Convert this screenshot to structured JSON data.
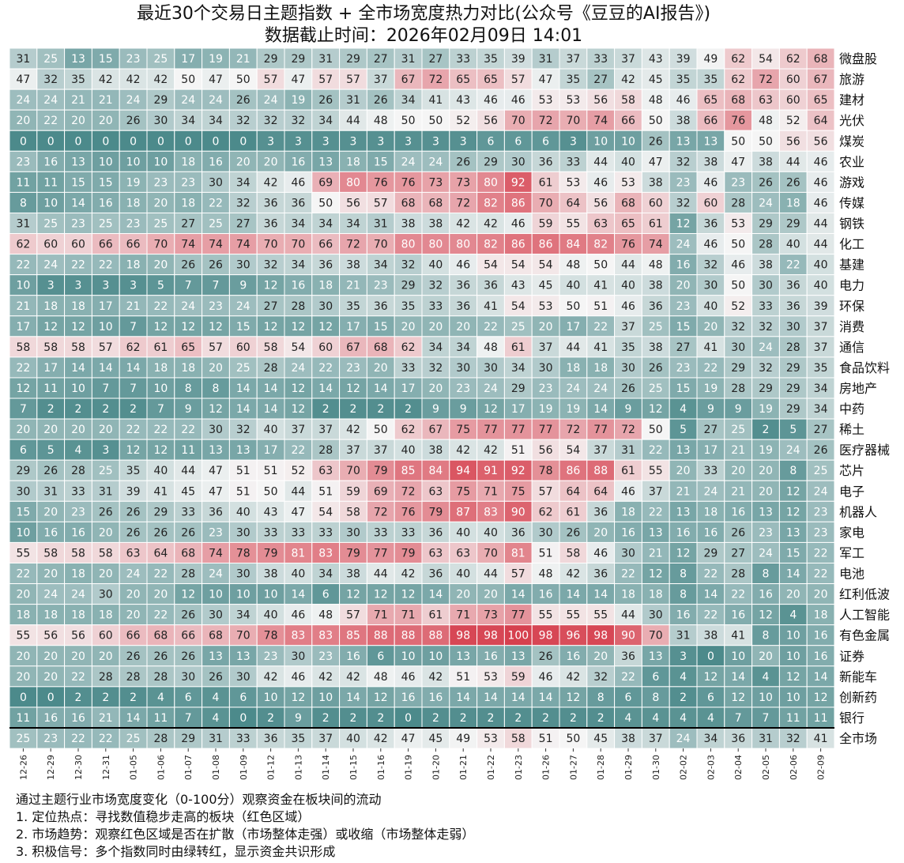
{
  "header": {
    "title_line1": "最近30个交易日主题指数 + 全市场宽度热力对比(公众号《豆豆的AI报告》)",
    "title_line2": "数据截止时间：2026年02月09日 14:01"
  },
  "notes": [
    "通过主题行业市场宽度变化（0-100分）观察资金在板块间的流动",
    "1. 定位热点：寻找数值稳步走高的板块（红色区域）",
    "2. 市场趋势：观察红色区域是否在扩散（市场整体走强）或收缩（市场整体走弱）",
    "3. 积极信号：多个指数同时由绿转红，显示资金共识形成"
  ],
  "chart_data": {
    "type": "heatmap",
    "title": "最近30个交易日主题指数 + 全市场宽度热力对比(公众号《豆豆的AI报告》)",
    "subtitle": "数据截止时间：2026年02月09日 14:01",
    "value_range": [
      0,
      100
    ],
    "colors": {
      "low": "#4c8a8b",
      "mid": "#f5f5f5",
      "high": "#d6404e"
    },
    "x": [
      "12-26",
      "12-29",
      "12-30",
      "12-31",
      "01-05",
      "01-06",
      "01-07",
      "01-08",
      "01-09",
      "01-12",
      "01-13",
      "01-14",
      "01-15",
      "01-16",
      "01-19",
      "01-20",
      "01-21",
      "01-22",
      "01-23",
      "01-26",
      "01-27",
      "01-28",
      "01-29",
      "01-30",
      "02-02",
      "02-03",
      "02-04",
      "02-05",
      "02-06",
      "02-09"
    ],
    "rows": [
      {
        "name": "微盘股",
        "values": [
          31,
          25,
          13,
          15,
          23,
          25,
          17,
          19,
          21,
          29,
          29,
          31,
          29,
          27,
          31,
          27,
          33,
          35,
          39,
          31,
          37,
          33,
          37,
          43,
          39,
          49,
          62,
          54,
          62,
          68
        ]
      },
      {
        "name": "旅游",
        "values": [
          47,
          32,
          35,
          42,
          42,
          42,
          50,
          47,
          50,
          57,
          47,
          57,
          57,
          37,
          67,
          72,
          65,
          65,
          57,
          47,
          35,
          27,
          42,
          45,
          35,
          35,
          62,
          72,
          60,
          67
        ]
      },
      {
        "name": "建材",
        "values": [
          24,
          24,
          21,
          21,
          24,
          29,
          24,
          24,
          26,
          24,
          19,
          26,
          31,
          26,
          34,
          41,
          43,
          46,
          46,
          53,
          53,
          56,
          58,
          48,
          46,
          65,
          68,
          63,
          60,
          65
        ]
      },
      {
        "name": "光伏",
        "values": [
          20,
          22,
          20,
          20,
          26,
          30,
          34,
          34,
          32,
          32,
          32,
          34,
          44,
          48,
          50,
          50,
          52,
          56,
          70,
          72,
          70,
          74,
          66,
          50,
          38,
          66,
          76,
          48,
          52,
          64
        ]
      },
      {
        "name": "煤炭",
        "values": [
          0,
          0,
          0,
          0,
          0,
          0,
          0,
          0,
          0,
          3,
          3,
          3,
          3,
          3,
          3,
          3,
          3,
          6,
          6,
          6,
          3,
          10,
          10,
          26,
          13,
          13,
          50,
          50,
          56,
          56
        ]
      },
      {
        "name": "农业",
        "values": [
          23,
          16,
          13,
          10,
          10,
          10,
          18,
          16,
          20,
          20,
          16,
          13,
          18,
          15,
          24,
          24,
          26,
          29,
          30,
          36,
          33,
          44,
          40,
          47,
          32,
          38,
          47,
          38,
          44,
          46
        ]
      },
      {
        "name": "游戏",
        "values": [
          11,
          11,
          15,
          15,
          19,
          23,
          23,
          30,
          34,
          42,
          46,
          69,
          80,
          76,
          76,
          73,
          73,
          80,
          92,
          61,
          53,
          46,
          53,
          38,
          23,
          46,
          23,
          26,
          26,
          46
        ]
      },
      {
        "name": "传媒",
        "values": [
          8,
          10,
          14,
          16,
          18,
          20,
          18,
          22,
          32,
          36,
          36,
          50,
          56,
          57,
          68,
          68,
          72,
          82,
          86,
          70,
          64,
          56,
          68,
          60,
          32,
          60,
          28,
          24,
          18,
          46
        ]
      },
      {
        "name": "钢铁",
        "values": [
          31,
          25,
          23,
          25,
          23,
          25,
          27,
          25,
          27,
          36,
          34,
          34,
          34,
          31,
          38,
          38,
          42,
          42,
          46,
          59,
          55,
          63,
          65,
          61,
          12,
          36,
          53,
          29,
          29,
          44
        ]
      },
      {
        "name": "化工",
        "values": [
          62,
          60,
          60,
          66,
          66,
          70,
          74,
          74,
          74,
          70,
          70,
          66,
          72,
          70,
          80,
          80,
          80,
          82,
          86,
          86,
          84,
          82,
          76,
          74,
          24,
          46,
          50,
          28,
          40,
          44
        ]
      },
      {
        "name": "基建",
        "values": [
          22,
          24,
          22,
          22,
          18,
          20,
          26,
          26,
          30,
          32,
          34,
          36,
          38,
          34,
          32,
          40,
          46,
          54,
          54,
          54,
          48,
          50,
          44,
          48,
          16,
          32,
          46,
          38,
          22,
          40
        ]
      },
      {
        "name": "电力",
        "values": [
          10,
          3,
          3,
          3,
          3,
          5,
          7,
          7,
          9,
          12,
          16,
          18,
          21,
          23,
          29,
          32,
          36,
          36,
          43,
          45,
          40,
          41,
          40,
          38,
          20,
          30,
          50,
          30,
          36,
          40
        ]
      },
      {
        "name": "环保",
        "values": [
          21,
          18,
          18,
          17,
          21,
          22,
          24,
          23,
          24,
          27,
          28,
          30,
          35,
          36,
          35,
          33,
          36,
          41,
          54,
          53,
          50,
          51,
          46,
          36,
          23,
          40,
          52,
          33,
          36,
          39
        ]
      },
      {
        "name": "消费",
        "values": [
          17,
          12,
          12,
          10,
          7,
          12,
          12,
          12,
          15,
          12,
          12,
          12,
          17,
          15,
          20,
          20,
          20,
          22,
          25,
          20,
          17,
          22,
          37,
          25,
          15,
          20,
          32,
          32,
          30,
          37
        ]
      },
      {
        "name": "通信",
        "values": [
          58,
          58,
          58,
          57,
          62,
          61,
          65,
          57,
          60,
          58,
          54,
          60,
          67,
          68,
          62,
          34,
          34,
          48,
          61,
          37,
          44,
          41,
          35,
          38,
          27,
          41,
          30,
          24,
          28,
          37
        ]
      },
      {
        "name": "食品饮料",
        "values": [
          22,
          17,
          14,
          14,
          14,
          18,
          18,
          20,
          25,
          28,
          24,
          22,
          23,
          20,
          33,
          32,
          30,
          30,
          34,
          30,
          18,
          18,
          30,
          26,
          23,
          22,
          29,
          32,
          29,
          35
        ]
      },
      {
        "name": "房地产",
        "values": [
          12,
          11,
          10,
          7,
          7,
          10,
          8,
          8,
          14,
          14,
          12,
          14,
          12,
          14,
          17,
          20,
          23,
          24,
          29,
          23,
          24,
          24,
          26,
          25,
          15,
          19,
          28,
          29,
          29,
          34
        ]
      },
      {
        "name": "中药",
        "values": [
          7,
          2,
          2,
          2,
          2,
          7,
          9,
          12,
          14,
          14,
          12,
          2,
          2,
          2,
          2,
          9,
          9,
          12,
          17,
          19,
          19,
          14,
          9,
          12,
          4,
          9,
          9,
          19,
          29,
          34
        ]
      },
      {
        "name": "稀土",
        "values": [
          20,
          20,
          20,
          20,
          22,
          22,
          22,
          30,
          32,
          40,
          37,
          37,
          42,
          50,
          62,
          67,
          75,
          77,
          77,
          77,
          72,
          77,
          72,
          50,
          5,
          27,
          25,
          2,
          5,
          27
        ]
      },
      {
        "name": "医疗器械",
        "values": [
          6,
          5,
          4,
          3,
          12,
          12,
          11,
          13,
          13,
          17,
          22,
          28,
          37,
          37,
          40,
          38,
          42,
          42,
          51,
          56,
          54,
          37,
          31,
          22,
          13,
          17,
          21,
          19,
          24,
          26
        ]
      },
      {
        "name": "芯片",
        "values": [
          29,
          26,
          28,
          25,
          35,
          40,
          44,
          47,
          51,
          51,
          52,
          63,
          70,
          79,
          85,
          84,
          94,
          91,
          92,
          78,
          86,
          88,
          61,
          55,
          20,
          33,
          20,
          20,
          8,
          25
        ]
      },
      {
        "name": "电子",
        "values": [
          30,
          31,
          33,
          31,
          39,
          41,
          45,
          47,
          51,
          50,
          44,
          51,
          59,
          69,
          72,
          63,
          75,
          71,
          75,
          57,
          64,
          64,
          46,
          37,
          21,
          24,
          21,
          20,
          12,
          24
        ]
      },
      {
        "name": "机器人",
        "values": [
          15,
          20,
          23,
          26,
          26,
          29,
          33,
          36,
          40,
          43,
          47,
          54,
          58,
          72,
          76,
          79,
          87,
          83,
          90,
          62,
          61,
          36,
          18,
          22,
          13,
          18,
          16,
          13,
          12,
          23
        ]
      },
      {
        "name": "家电",
        "values": [
          10,
          16,
          16,
          20,
          26,
          26,
          26,
          23,
          30,
          33,
          33,
          33,
          30,
          33,
          33,
          36,
          40,
          40,
          36,
          30,
          26,
          20,
          16,
          13,
          16,
          16,
          26,
          23,
          13,
          23
        ]
      },
      {
        "name": "军工",
        "values": [
          55,
          58,
          58,
          58,
          63,
          64,
          68,
          74,
          78,
          79,
          81,
          83,
          79,
          77,
          79,
          63,
          63,
          70,
          81,
          51,
          58,
          46,
          30,
          21,
          12,
          29,
          27,
          24,
          15,
          22
        ]
      },
      {
        "name": "电池",
        "values": [
          22,
          20,
          18,
          20,
          24,
          22,
          28,
          24,
          30,
          38,
          40,
          34,
          38,
          44,
          42,
          36,
          40,
          44,
          57,
          48,
          42,
          36,
          22,
          12,
          8,
          22,
          28,
          8,
          14,
          22
        ]
      },
      {
        "name": "红利低波",
        "values": [
          20,
          24,
          24,
          30,
          20,
          20,
          12,
          10,
          10,
          10,
          14,
          6,
          12,
          12,
          12,
          14,
          20,
          20,
          14,
          16,
          14,
          14,
          18,
          18,
          8,
          14,
          22,
          16,
          20,
          20
        ]
      },
      {
        "name": "人工智能",
        "values": [
          18,
          18,
          18,
          18,
          20,
          22,
          26,
          30,
          34,
          40,
          46,
          48,
          57,
          71,
          71,
          61,
          71,
          73,
          77,
          55,
          55,
          55,
          44,
          30,
          16,
          22,
          16,
          12,
          4,
          18
        ]
      },
      {
        "name": "有色金属",
        "values": [
          55,
          56,
          56,
          60,
          66,
          68,
          66,
          68,
          70,
          78,
          83,
          83,
          85,
          88,
          88,
          88,
          98,
          98,
          100,
          98,
          96,
          98,
          90,
          70,
          31,
          38,
          41,
          8,
          10,
          16
        ]
      },
      {
        "name": "证券",
        "values": [
          20,
          20,
          20,
          20,
          26,
          26,
          26,
          13,
          13,
          23,
          30,
          23,
          16,
          6,
          10,
          10,
          13,
          16,
          13,
          26,
          16,
          20,
          36,
          13,
          3,
          0,
          10,
          20,
          10,
          16
        ]
      },
      {
        "name": "新能车",
        "values": [
          20,
          20,
          22,
          28,
          28,
          28,
          30,
          26,
          30,
          42,
          46,
          42,
          42,
          48,
          46,
          42,
          51,
          53,
          59,
          46,
          42,
          32,
          22,
          6,
          4,
          12,
          14,
          4,
          12,
          14
        ]
      },
      {
        "name": "创新药",
        "values": [
          0,
          0,
          2,
          2,
          2,
          4,
          6,
          4,
          6,
          10,
          12,
          10,
          14,
          12,
          16,
          16,
          14,
          14,
          14,
          14,
          12,
          8,
          6,
          8,
          2,
          6,
          12,
          10,
          10,
          12
        ]
      },
      {
        "name": "银行",
        "values": [
          11,
          16,
          16,
          21,
          14,
          11,
          7,
          4,
          0,
          2,
          9,
          2,
          2,
          2,
          0,
          2,
          2,
          2,
          2,
          2,
          2,
          2,
          4,
          4,
          4,
          4,
          7,
          7,
          11,
          11
        ]
      },
      {
        "name": "全市场",
        "values": [
          25,
          23,
          22,
          22,
          25,
          28,
          29,
          31,
          33,
          36,
          35,
          37,
          40,
          42,
          47,
          45,
          49,
          53,
          58,
          51,
          50,
          45,
          38,
          37,
          24,
          34,
          36,
          31,
          32,
          41
        ]
      }
    ]
  }
}
